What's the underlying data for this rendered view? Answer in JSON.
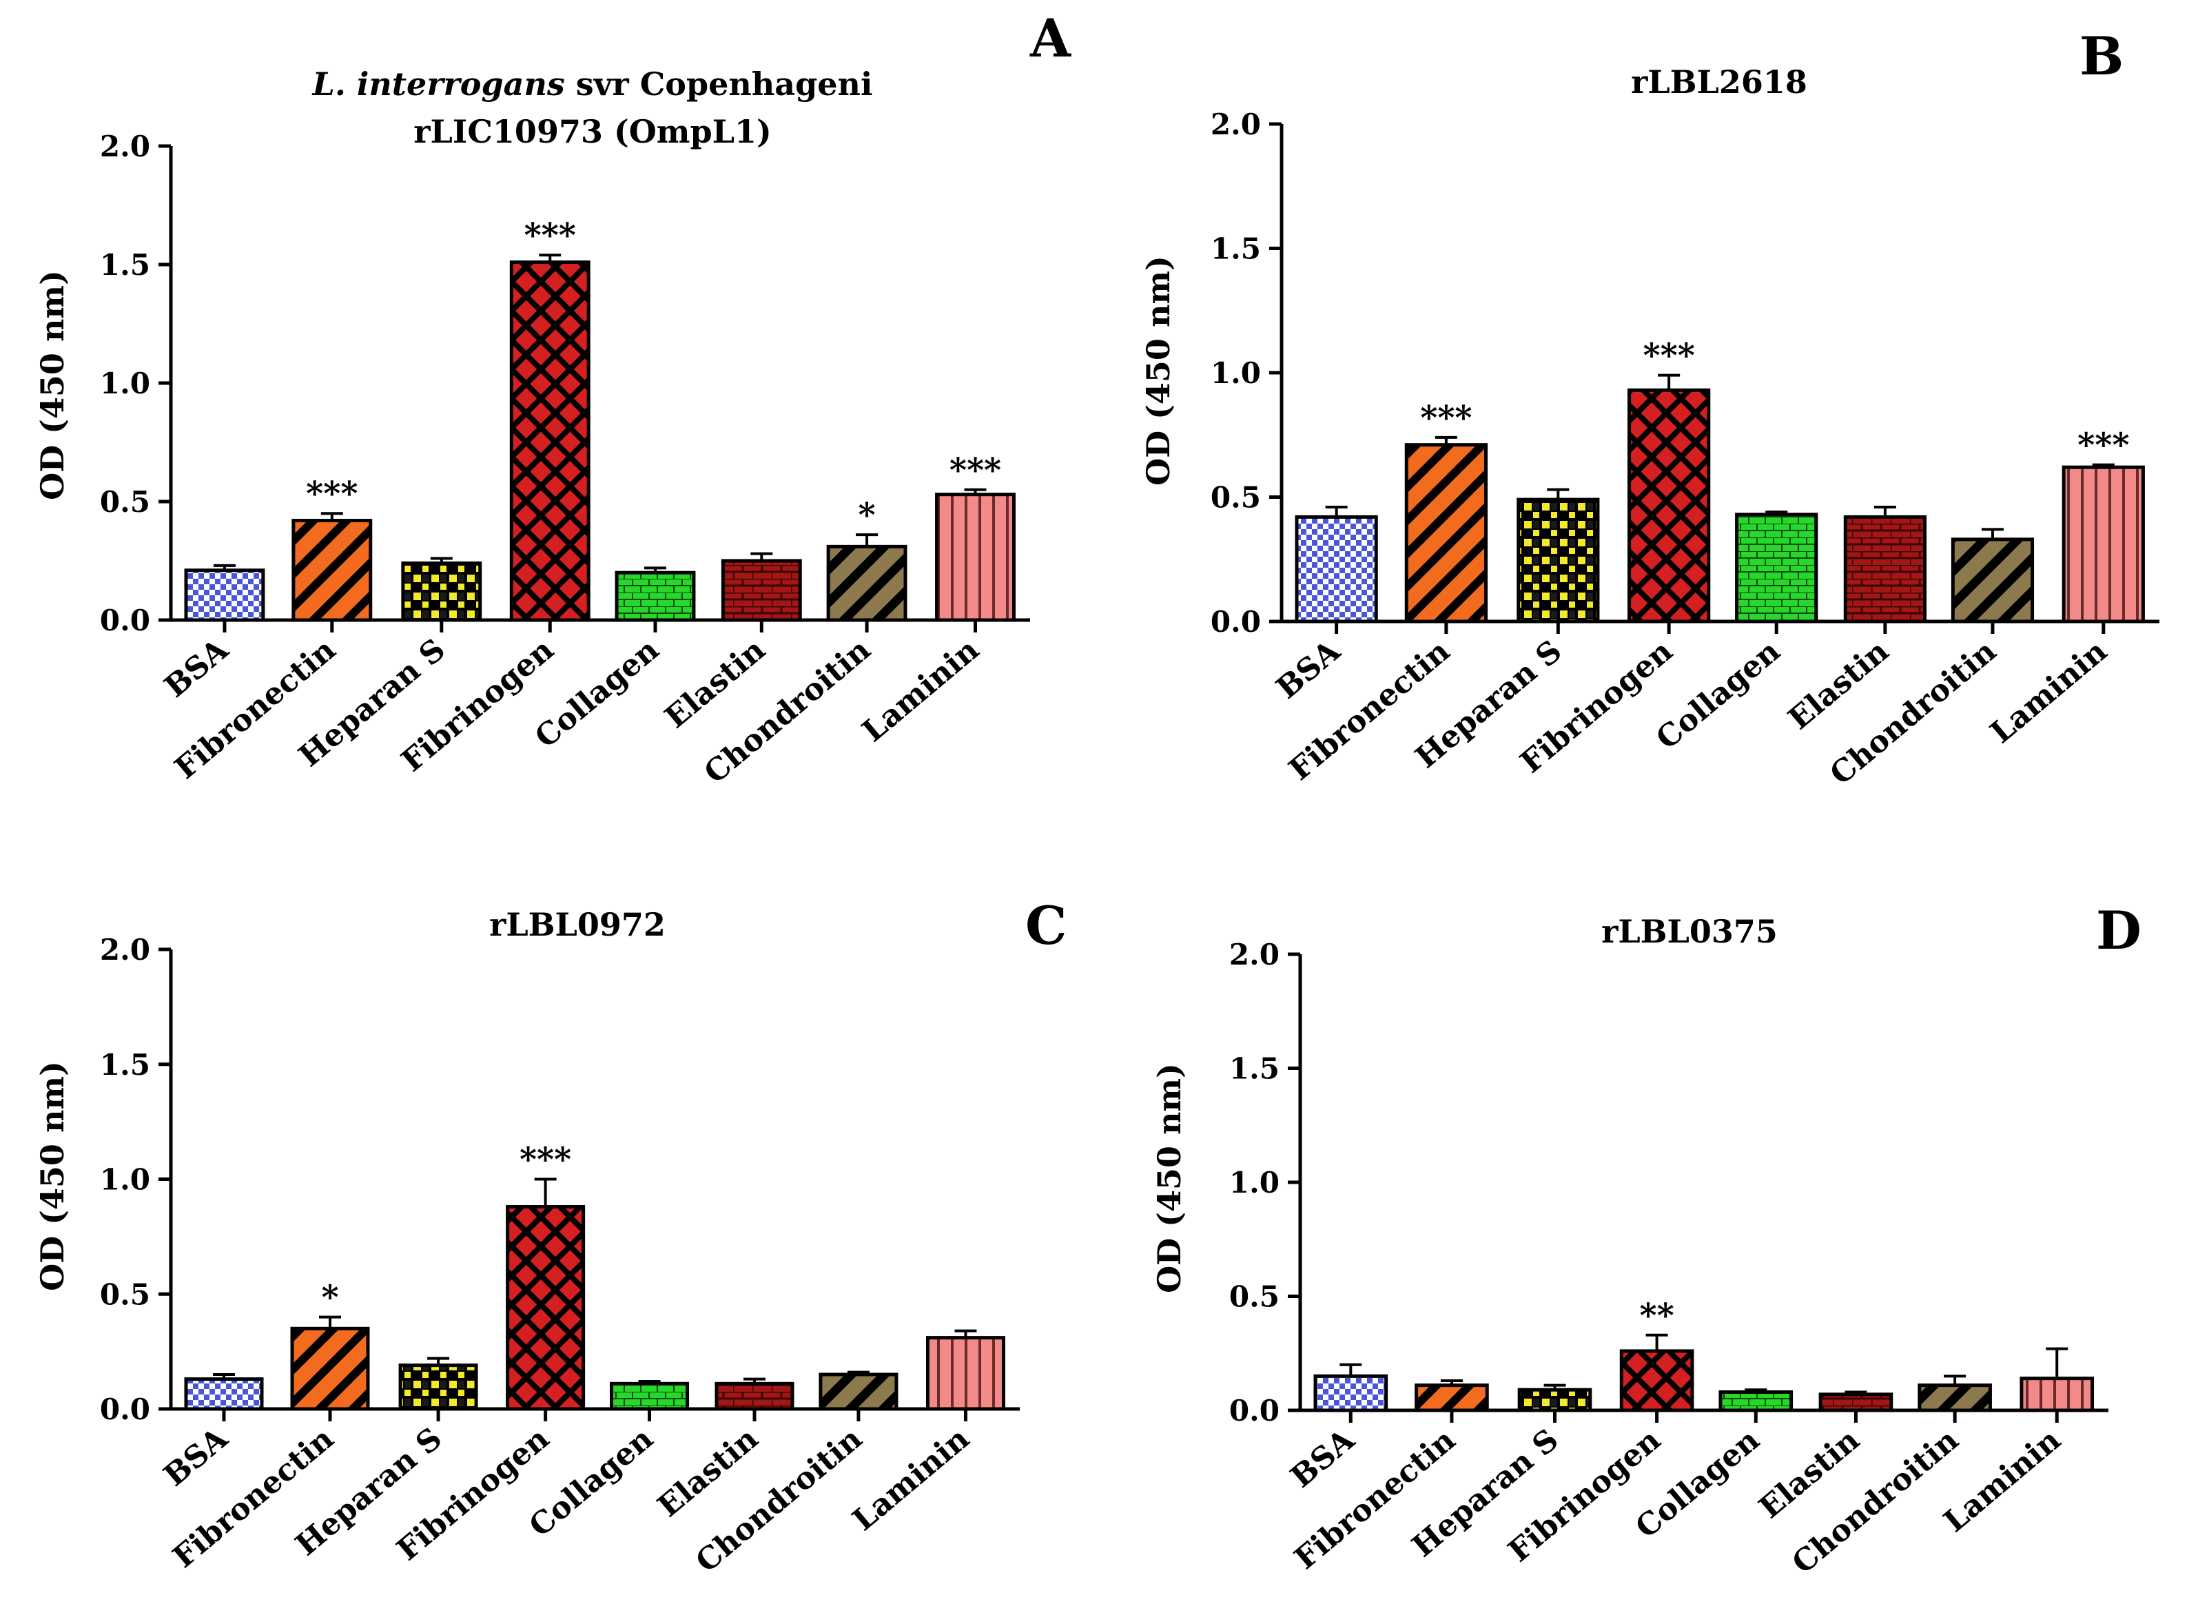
{
  "colors": {
    "BSA": "#4a56d8",
    "Fibronectin": "#f26b1e",
    "Heparan S": "#f2ea2a",
    "Fibrinogen": "#d42020",
    "Collagen": "#27d82a",
    "Elastin": "#a31616",
    "Chondroitin": "#8c7a4e",
    "Laminin": "#f28a8a"
  },
  "chart_data": [
    {
      "panel": "A",
      "type": "bar",
      "title_italic": "L. interrogans",
      "title_rest": " svr Copenhageni",
      "title_line2": "rLIC10973 (OmpL1)",
      "ylabel": "OD (450 nm)",
      "ylim": [
        0,
        2.0
      ],
      "yticks": [
        "0.0",
        "0.5",
        "1.0",
        "1.5",
        "2.0"
      ],
      "categories": [
        "BSA",
        "Fibronectin",
        "Heparan S",
        "Fibrinogen",
        "Collagen",
        "Elastin",
        "Chondroitin",
        "Laminin"
      ],
      "values": [
        0.21,
        0.42,
        0.24,
        1.51,
        0.2,
        0.25,
        0.31,
        0.53
      ],
      "errors": [
        0.02,
        0.03,
        0.02,
        0.03,
        0.02,
        0.03,
        0.05,
        0.02
      ],
      "significance": [
        "",
        "***",
        "",
        "***",
        "",
        "",
        "*",
        "***"
      ]
    },
    {
      "panel": "B",
      "type": "bar",
      "title": "rLBL2618",
      "ylabel": "OD (450 nm)",
      "ylim": [
        0,
        2.0
      ],
      "yticks": [
        "0.0",
        "0.5",
        "1.0",
        "1.5",
        "2.0"
      ],
      "categories": [
        "BSA",
        "Fibronectin",
        "Heparan S",
        "Fibrinogen",
        "Collagen",
        "Elastin",
        "Chondroitin",
        "Laminin"
      ],
      "values": [
        0.42,
        0.71,
        0.49,
        0.93,
        0.43,
        0.42,
        0.33,
        0.62
      ],
      "errors": [
        0.04,
        0.03,
        0.04,
        0.06,
        0.01,
        0.04,
        0.04,
        0.01
      ],
      "significance": [
        "",
        "***",
        "",
        "***",
        "",
        "",
        "",
        "***"
      ]
    },
    {
      "panel": "C",
      "type": "bar",
      "title": "rLBL0972",
      "ylabel": "OD (450 nm)",
      "ylim": [
        0,
        2.0
      ],
      "yticks": [
        "0.0",
        "0.5",
        "1.0",
        "1.5",
        "2.0"
      ],
      "categories": [
        "BSA",
        "Fibronectin",
        "Heparan S",
        "Fibrinogen",
        "Collagen",
        "Elastin",
        "Chondroitin",
        "Laminin"
      ],
      "values": [
        0.13,
        0.35,
        0.19,
        0.88,
        0.11,
        0.11,
        0.15,
        0.31
      ],
      "errors": [
        0.02,
        0.05,
        0.03,
        0.12,
        0.01,
        0.02,
        0.01,
        0.03
      ],
      "significance": [
        "",
        "*",
        "",
        "***",
        "",
        "",
        "",
        ""
      ]
    },
    {
      "panel": "D",
      "type": "bar",
      "title": "rLBL0375",
      "ylabel": "OD (450 nm)",
      "ylim": [
        0,
        2.0
      ],
      "yticks": [
        "0.0",
        "0.5",
        "1.0",
        "1.5",
        "2.0"
      ],
      "categories": [
        "BSA",
        "Fibronectin",
        "Heparan S",
        "Fibrinogen",
        "Collagen",
        "Elastin",
        "Chondroitin",
        "Laminin"
      ],
      "values": [
        0.15,
        0.11,
        0.09,
        0.26,
        0.08,
        0.07,
        0.11,
        0.14
      ],
      "errors": [
        0.05,
        0.02,
        0.02,
        0.07,
        0.01,
        0.01,
        0.04,
        0.13
      ],
      "significance": [
        "",
        "",
        "",
        "**",
        "",
        "",
        "",
        ""
      ]
    }
  ]
}
